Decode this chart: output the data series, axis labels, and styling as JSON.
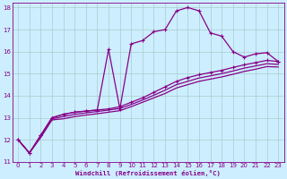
{
  "background_color": "#cceeff",
  "grid_color": "#aacccc",
  "line_color": "#880088",
  "xlabel": "Windchill (Refroidissement éolien,°C)",
  "xlim": [
    -0.5,
    23.5
  ],
  "ylim": [
    11,
    18.2
  ],
  "yticks": [
    11,
    12,
    13,
    14,
    15,
    16,
    17,
    18
  ],
  "xticks": [
    0,
    1,
    2,
    3,
    4,
    5,
    6,
    7,
    8,
    9,
    10,
    11,
    12,
    13,
    14,
    15,
    16,
    17,
    18,
    19,
    20,
    21,
    22,
    23
  ],
  "series": [
    {
      "x": [
        0,
        1,
        2,
        3,
        4,
        5,
        6,
        7,
        8,
        9,
        10,
        11,
        12,
        13,
        14,
        15,
        16,
        17,
        18,
        19,
        20,
        21,
        22,
        23
      ],
      "y": [
        12.0,
        11.4,
        12.2,
        13.0,
        13.15,
        13.25,
        13.3,
        13.35,
        16.1,
        13.4,
        16.35,
        16.5,
        16.9,
        17.0,
        17.85,
        18.0,
        17.85,
        16.85,
        16.7,
        16.0,
        15.75,
        15.9,
        15.95,
        15.55
      ],
      "marker": "+",
      "markersize": 3.5,
      "linewidth": 0.9,
      "linestyle": "-"
    },
    {
      "x": [
        0,
        1,
        2,
        3,
        4,
        5,
        6,
        7,
        8,
        9,
        10,
        11,
        12,
        13,
        14,
        15,
        16,
        17,
        18,
        19,
        20,
        21,
        22,
        23
      ],
      "y": [
        12.0,
        11.4,
        12.2,
        13.0,
        13.15,
        13.25,
        13.3,
        13.35,
        13.4,
        13.5,
        13.7,
        13.9,
        14.15,
        14.4,
        14.65,
        14.82,
        14.95,
        15.05,
        15.15,
        15.28,
        15.4,
        15.5,
        15.6,
        15.55
      ],
      "marker": "+",
      "markersize": 2.5,
      "linewidth": 0.9,
      "linestyle": "-"
    },
    {
      "x": [
        0,
        1,
        2,
        3,
        4,
        5,
        6,
        7,
        8,
        9,
        10,
        11,
        12,
        13,
        14,
        15,
        16,
        17,
        18,
        19,
        20,
        21,
        22,
        23
      ],
      "y": [
        12.0,
        11.4,
        12.15,
        12.95,
        13.05,
        13.15,
        13.22,
        13.28,
        13.35,
        13.42,
        13.6,
        13.8,
        14.02,
        14.25,
        14.5,
        14.65,
        14.8,
        14.9,
        15.0,
        15.12,
        15.25,
        15.35,
        15.45,
        15.42
      ],
      "marker": null,
      "markersize": 0,
      "linewidth": 0.9,
      "linestyle": "-"
    },
    {
      "x": [
        0,
        1,
        2,
        3,
        4,
        5,
        6,
        7,
        8,
        9,
        10,
        11,
        12,
        13,
        14,
        15,
        16,
        17,
        18,
        19,
        20,
        21,
        22,
        23
      ],
      "y": [
        12.0,
        11.4,
        12.1,
        12.9,
        12.95,
        13.05,
        13.12,
        13.18,
        13.25,
        13.32,
        13.5,
        13.7,
        13.9,
        14.1,
        14.35,
        14.5,
        14.65,
        14.75,
        14.85,
        14.97,
        15.1,
        15.2,
        15.32,
        15.3
      ],
      "marker": null,
      "markersize": 0,
      "linewidth": 0.9,
      "linestyle": "-"
    }
  ]
}
